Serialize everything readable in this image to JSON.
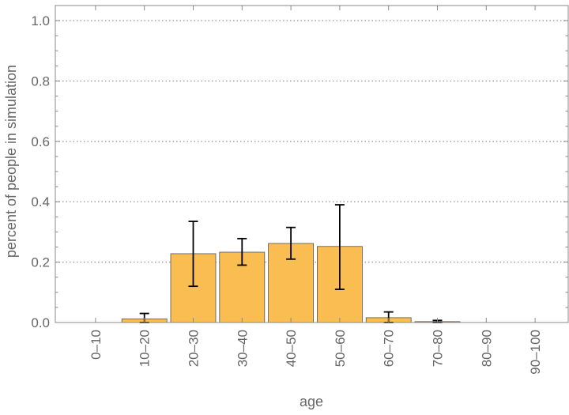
{
  "chart_data": {
    "type": "bar",
    "title": "",
    "xlabel": "age",
    "ylabel": "percent of people in simulation",
    "categories": [
      "0–10",
      "10–20",
      "20–30",
      "30–40",
      "40–50",
      "50–60",
      "60–70",
      "70–80",
      "80–90",
      "90–100"
    ],
    "values": [
      0,
      0.012,
      0.228,
      0.233,
      0.262,
      0.252,
      0.016,
      0.003,
      0,
      0
    ],
    "error_low": [
      null,
      0.0,
      0.12,
      0.19,
      0.21,
      0.11,
      0.0,
      0.0,
      null,
      null
    ],
    "error_high": [
      null,
      0.03,
      0.335,
      0.278,
      0.315,
      0.39,
      0.035,
      0.007,
      null,
      null
    ],
    "ylim": [
      0,
      1.05
    ],
    "yticks": [
      "0.0",
      "0.2",
      "0.4",
      "0.6",
      "0.8",
      "1.0"
    ],
    "ytick_values": [
      0,
      0.2,
      0.4,
      0.6,
      0.8,
      1.0
    ],
    "grid": "horizontal dotted",
    "colors": {
      "bar_fill": "#f9bd52",
      "bar_stroke": "#555555",
      "error_bar": "#000000",
      "grid": "#a0a0a0",
      "axis": "#888888",
      "text": "#666666"
    }
  }
}
